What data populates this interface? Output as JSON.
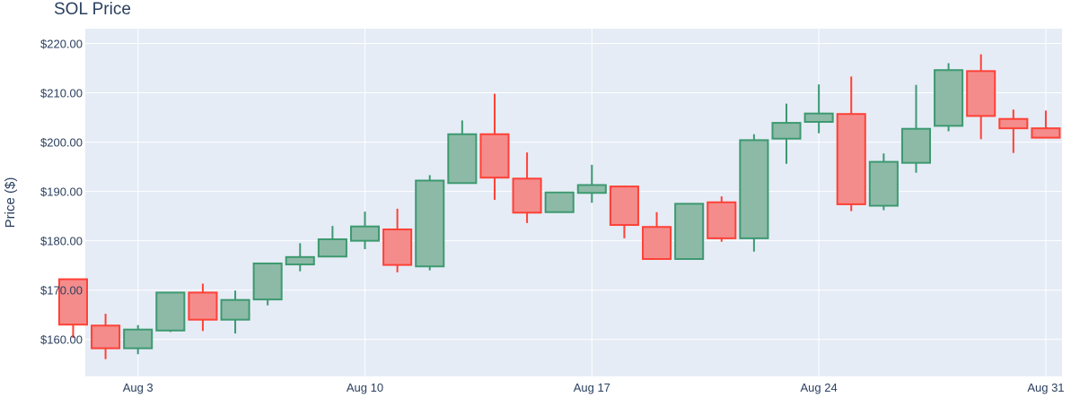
{
  "chart_data": {
    "type": "candlestick",
    "title": "SOL Price",
    "ylabel": "Price ($)",
    "xlabel": "",
    "ylim": [
      152.5,
      223
    ],
    "y_ticks": [
      160,
      170,
      180,
      190,
      200,
      210,
      220
    ],
    "y_tick_labels": [
      "$160.00",
      "$170.00",
      "$180.00",
      "$190.00",
      "$200.00",
      "$210.00",
      "$220.00"
    ],
    "x_ticks": [
      {
        "date": "2024-08-03",
        "label": "Aug 3"
      },
      {
        "date": "2024-08-10",
        "label": "Aug 10"
      },
      {
        "date": "2024-08-17",
        "label": "Aug 17"
      },
      {
        "date": "2024-08-24",
        "label": "Aug 24"
      },
      {
        "date": "2024-08-31",
        "label": "Aug 31"
      }
    ],
    "x_range": [
      "2024-08-01T09:00",
      "2024-08-31T12:00"
    ],
    "grid": true,
    "increasing_color": "#3d9970",
    "decreasing_color": "#ff4136",
    "increasing_fill": "#8dbaa7",
    "decreasing_fill": "#f48c8c",
    "candles": [
      {
        "date": "2024-08-01",
        "open": 172.2,
        "high": 172.2,
        "low": 160.3,
        "close": 163.0
      },
      {
        "date": "2024-08-02",
        "open": 162.8,
        "high": 165.2,
        "low": 156.0,
        "close": 158.2
      },
      {
        "date": "2024-08-03",
        "open": 158.2,
        "high": 162.9,
        "low": 157.0,
        "close": 162.0
      },
      {
        "date": "2024-08-04",
        "open": 161.8,
        "high": 169.5,
        "low": 161.5,
        "close": 169.5
      },
      {
        "date": "2024-08-05",
        "open": 169.5,
        "high": 171.3,
        "low": 161.7,
        "close": 164.0
      },
      {
        "date": "2024-08-06",
        "open": 164.0,
        "high": 169.9,
        "low": 161.2,
        "close": 168.0
      },
      {
        "date": "2024-08-07",
        "open": 168.1,
        "high": 175.4,
        "low": 166.9,
        "close": 175.4
      },
      {
        "date": "2024-08-08",
        "open": 175.2,
        "high": 179.5,
        "low": 173.8,
        "close": 176.7
      },
      {
        "date": "2024-08-09",
        "open": 176.8,
        "high": 183.0,
        "low": 176.8,
        "close": 180.3
      },
      {
        "date": "2024-08-10",
        "open": 180.0,
        "high": 185.9,
        "low": 178.3,
        "close": 182.9
      },
      {
        "date": "2024-08-11",
        "open": 182.3,
        "high": 186.5,
        "low": 173.6,
        "close": 175.1
      },
      {
        "date": "2024-08-12",
        "open": 174.8,
        "high": 193.3,
        "low": 174.0,
        "close": 192.2
      },
      {
        "date": "2024-08-13",
        "open": 191.7,
        "high": 204.4,
        "low": 191.7,
        "close": 201.6
      },
      {
        "date": "2024-08-14",
        "open": 201.6,
        "high": 209.8,
        "low": 188.3,
        "close": 192.8
      },
      {
        "date": "2024-08-15",
        "open": 192.6,
        "high": 197.9,
        "low": 183.6,
        "close": 185.7
      },
      {
        "date": "2024-08-16",
        "open": 185.8,
        "high": 189.8,
        "low": 185.7,
        "close": 189.8
      },
      {
        "date": "2024-08-17",
        "open": 189.7,
        "high": 195.4,
        "low": 187.7,
        "close": 191.3
      },
      {
        "date": "2024-08-18",
        "open": 191.0,
        "high": 191.2,
        "low": 180.5,
        "close": 183.2
      },
      {
        "date": "2024-08-19",
        "open": 182.8,
        "high": 185.8,
        "low": 176.3,
        "close": 176.3
      },
      {
        "date": "2024-08-20",
        "open": 176.3,
        "high": 187.5,
        "low": 176.3,
        "close": 187.5
      },
      {
        "date": "2024-08-21",
        "open": 187.8,
        "high": 189.0,
        "low": 179.8,
        "close": 180.5
      },
      {
        "date": "2024-08-22",
        "open": 180.5,
        "high": 201.6,
        "low": 177.8,
        "close": 200.4
      },
      {
        "date": "2024-08-23",
        "open": 200.7,
        "high": 207.8,
        "low": 195.6,
        "close": 203.9
      },
      {
        "date": "2024-08-24",
        "open": 204.1,
        "high": 211.7,
        "low": 201.8,
        "close": 205.8
      },
      {
        "date": "2024-08-25",
        "open": 205.7,
        "high": 213.3,
        "low": 186.0,
        "close": 187.4
      },
      {
        "date": "2024-08-26",
        "open": 187.1,
        "high": 197.7,
        "low": 186.2,
        "close": 196.0
      },
      {
        "date": "2024-08-27",
        "open": 195.8,
        "high": 211.6,
        "low": 193.8,
        "close": 202.7
      },
      {
        "date": "2024-08-28",
        "open": 203.3,
        "high": 216.0,
        "low": 202.2,
        "close": 214.6
      },
      {
        "date": "2024-08-29",
        "open": 214.4,
        "high": 217.8,
        "low": 200.6,
        "close": 205.3
      },
      {
        "date": "2024-08-30",
        "open": 204.7,
        "high": 206.6,
        "low": 197.8,
        "close": 202.8
      },
      {
        "date": "2024-08-31",
        "open": 202.8,
        "high": 206.4,
        "low": 200.9,
        "close": 200.9
      }
    ]
  }
}
